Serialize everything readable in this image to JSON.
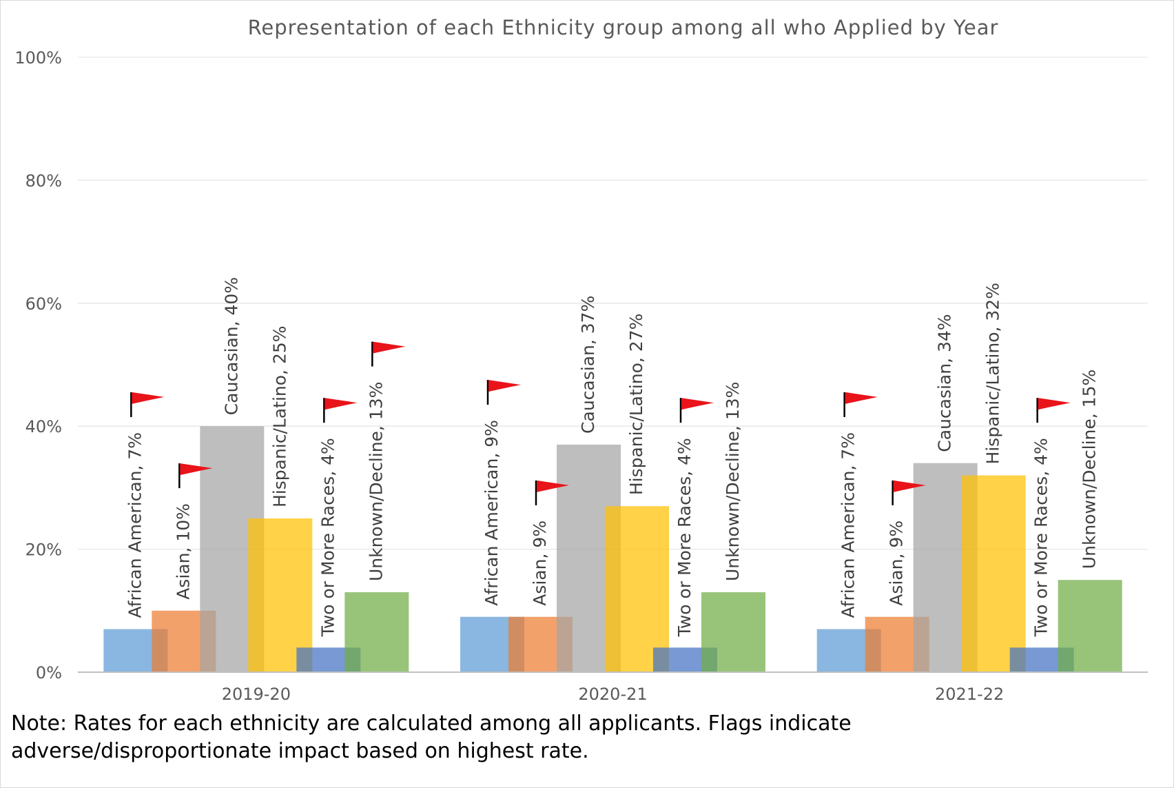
{
  "chart_data": {
    "type": "bar",
    "title": "Representation of each Ethnicity group among all who Applied by Year",
    "xlabel": "",
    "ylabel": "",
    "ylim": [
      0,
      100
    ],
    "yticks": [
      "0%",
      "20%",
      "40%",
      "60%",
      "80%",
      "100%"
    ],
    "ytick_values": [
      0,
      20,
      40,
      60,
      80,
      100
    ],
    "grid": true,
    "categories": [
      "2019-20",
      "2020-21",
      "2021-22"
    ],
    "series": [
      {
        "name": "African American",
        "color": "#5b9bd5",
        "values": [
          7,
          9,
          7
        ],
        "flagged": [
          true,
          true,
          true
        ]
      },
      {
        "name": "Asian",
        "color": "#ed7d31",
        "values": [
          10,
          9,
          9
        ],
        "flagged": [
          true,
          true,
          true
        ]
      },
      {
        "name": "Caucasian",
        "color": "#a5a5a5",
        "values": [
          40,
          37,
          34
        ],
        "flagged": [
          false,
          false,
          false
        ]
      },
      {
        "name": "Hispanic/Latino",
        "color": "#ffc000",
        "values": [
          25,
          27,
          32
        ],
        "flagged": [
          false,
          false,
          false
        ]
      },
      {
        "name": "Two or More Races",
        "color": "#4472c4",
        "values": [
          4,
          4,
          4
        ],
        "flagged": [
          true,
          true,
          true
        ]
      },
      {
        "name": "Unknown/Decline",
        "color": "#70ad47",
        "values": [
          13,
          13,
          15
        ],
        "flagged": [
          true,
          false,
          false
        ]
      }
    ],
    "data_labels": [
      [
        "African American, 7%",
        "Asian, 10%",
        "Caucasian, 40%",
        "Hispanic/Latino, 25%",
        "Two or More Races, 4%",
        "Unknown/Decline, 13%"
      ],
      [
        "African American, 9%",
        "Asian, 9%",
        "Caucasian, 37%",
        "Hispanic/Latino, 27%",
        "Two or More Races, 4%",
        "Unknown/Decline, 13%"
      ],
      [
        "African American, 7%",
        "Asian, 9%",
        "Caucasian, 34%",
        "Hispanic/Latino, 32%",
        "Two or More Races, 4%",
        "Unknown/Decline, 15%"
      ]
    ],
    "flag_color": "#e8141a"
  },
  "note": "Note: Rates for each ethnicity are calculated among all applicants. Flags indicate adverse/disproportionate impact based on highest rate."
}
